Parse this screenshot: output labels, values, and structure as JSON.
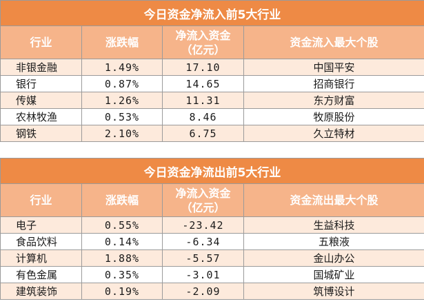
{
  "inflow": {
    "title": "今日资金净流入前5大行业",
    "headers": [
      "行业",
      "涨跌幅",
      "净流入资金\n（亿元）",
      "资金流入最大个股"
    ],
    "headers_line": {
      "industry": "行业",
      "change": "涨跌幅",
      "net_line1": "净流入资金",
      "net_line2": "（亿元）",
      "top_stock": "资金流入最大个股"
    },
    "rows": [
      {
        "industry": "非银金融",
        "change": "1.49%",
        "net": "17.10",
        "stock": "中国平安"
      },
      {
        "industry": "银行",
        "change": "0.87%",
        "net": "14.65",
        "stock": "招商银行"
      },
      {
        "industry": "传媒",
        "change": "1.26%",
        "net": "11.31",
        "stock": "东方财富"
      },
      {
        "industry": "农林牧渔",
        "change": "0.53%",
        "net": "8.46",
        "stock": "牧原股份"
      },
      {
        "industry": "钢铁",
        "change": "2.10%",
        "net": "6.75",
        "stock": "久立特材"
      }
    ]
  },
  "outflow": {
    "title": "今日资金净流出前5大行业",
    "headers_line": {
      "industry": "行业",
      "change": "涨跌幅",
      "net_line1": "净流入资金",
      "net_line2": "（亿元）",
      "top_stock": "资金流出最大个股"
    },
    "rows": [
      {
        "industry": "电子",
        "change": "0.55%",
        "net": "-23.42",
        "stock": "生益科技"
      },
      {
        "industry": "食品饮料",
        "change": "0.14%",
        "net": "-6.34",
        "stock": "五粮液"
      },
      {
        "industry": "计算机",
        "change": "1.88%",
        "net": "-5.57",
        "stock": "金山办公"
      },
      {
        "industry": "有色金属",
        "change": "0.35%",
        "net": "-3.01",
        "stock": "国城矿业"
      },
      {
        "industry": "建筑装饰",
        "change": "0.19%",
        "net": "-2.09",
        "stock": "筑博设计"
      }
    ]
  },
  "colors": {
    "title_bg": "#ee8a45",
    "header_bg": "#f6b48a",
    "row_alt_bg": "#fdeadc"
  }
}
